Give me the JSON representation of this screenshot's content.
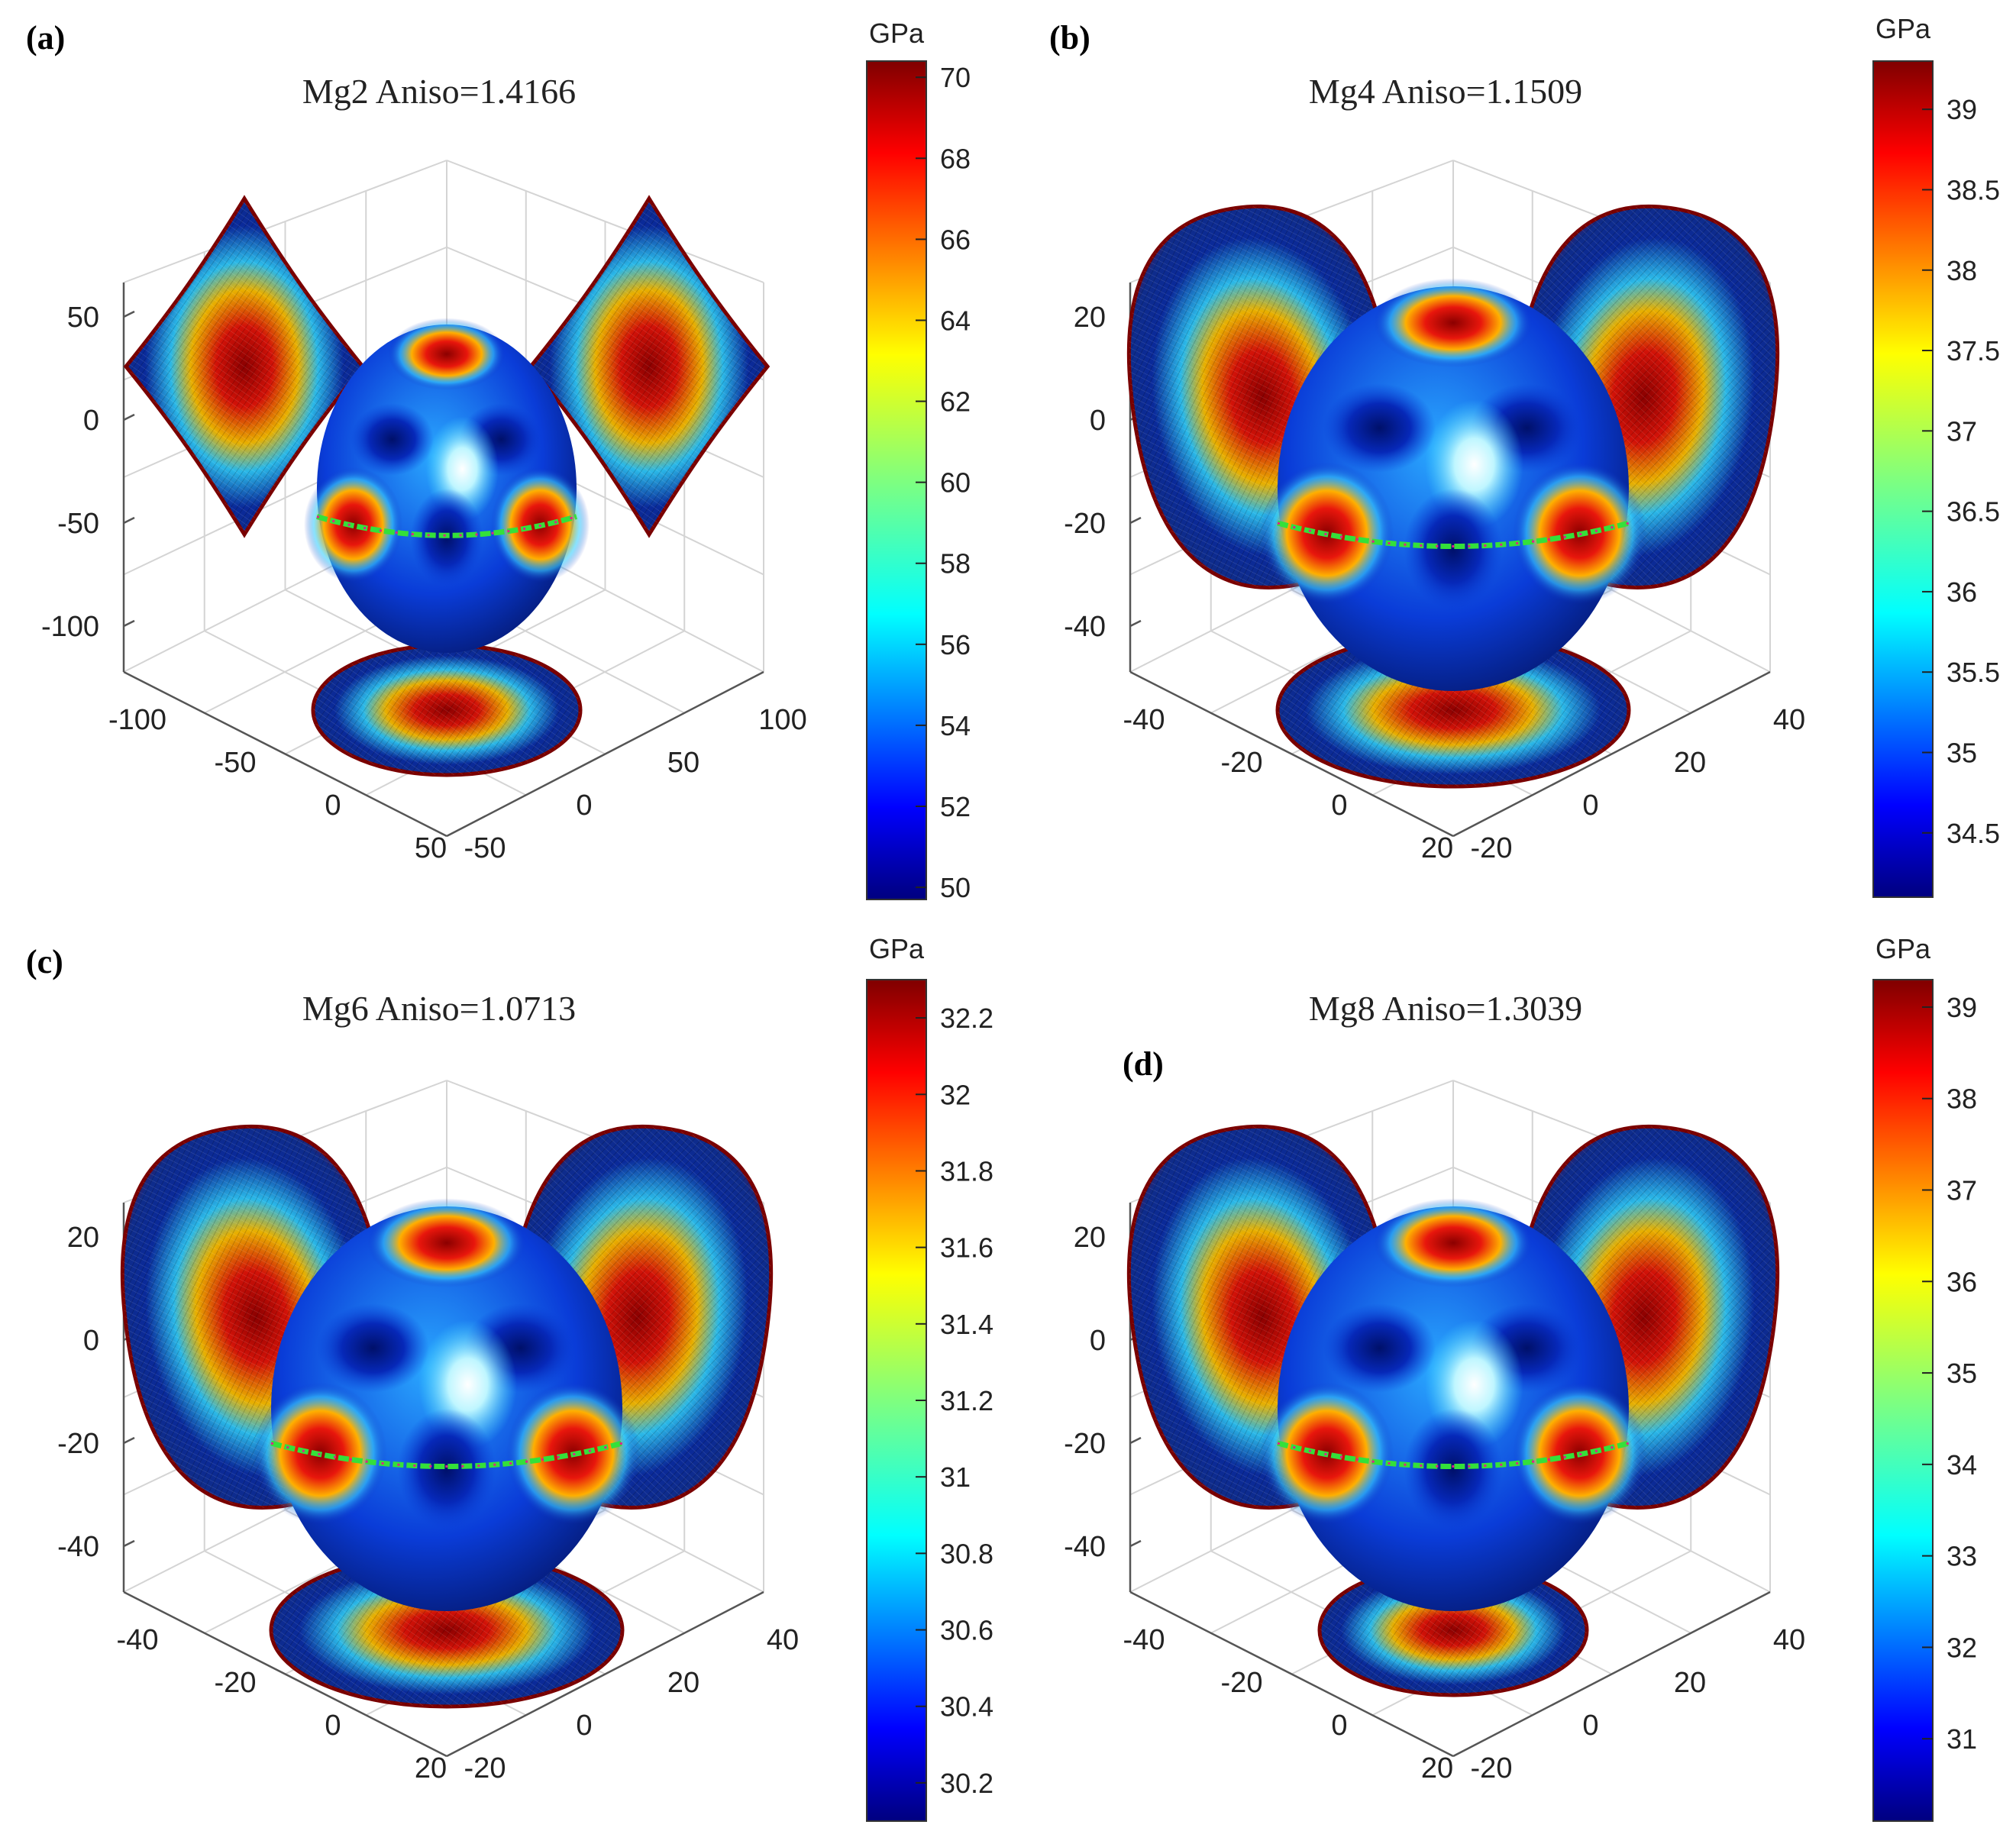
{
  "chart_data": [
    {
      "type": "3d-surface",
      "panel_label": "(a)",
      "title": "Mg2  Aniso=1.4166",
      "z_ticks": [
        "50",
        "0",
        "-50",
        "-100"
      ],
      "x_ticks": [
        "-100",
        "-50",
        "0",
        "50"
      ],
      "y_ticks": [
        "100",
        "50",
        "0",
        "-50"
      ],
      "colorbar": {
        "unit": "GPa",
        "ticks": [
          "70",
          "68",
          "66",
          "64",
          "62",
          "60",
          "58",
          "56",
          "54",
          "52",
          "50"
        ],
        "range": [
          49.7,
          70.4
        ]
      },
      "colormap": "jet",
      "anisotropy": 1.4166
    },
    {
      "type": "3d-surface",
      "panel_label": "(b)",
      "title": "Mg4  Aniso=1.1509",
      "z_ticks": [
        "20",
        "0",
        "-20",
        "-40"
      ],
      "x_ticks": [
        "-40",
        "-20",
        "0",
        "20"
      ],
      "y_ticks": [
        "40",
        "20",
        "0",
        "-20"
      ],
      "colorbar": {
        "unit": "GPa",
        "ticks": [
          "39",
          "38.5",
          "38",
          "37.5",
          "37",
          "36.5",
          "36",
          "35.5",
          "35",
          "34.5"
        ],
        "range": [
          34.1,
          39.3
        ]
      },
      "colormap": "jet",
      "anisotropy": 1.1509
    },
    {
      "type": "3d-surface",
      "panel_label": "(c)",
      "title": "Mg6  Aniso=1.0713",
      "z_ticks": [
        "20",
        "0",
        "-20",
        "-40"
      ],
      "x_ticks": [
        "-40",
        "-20",
        "0",
        "20"
      ],
      "y_ticks": [
        "40",
        "20",
        "0",
        "-20"
      ],
      "colorbar": {
        "unit": "GPa",
        "ticks": [
          "32.2",
          "32",
          "31.8",
          "31.6",
          "31.4",
          "31.2",
          "31",
          "30.8",
          "30.6",
          "30.4",
          "30.2"
        ],
        "range": [
          30.1,
          32.3
        ]
      },
      "colormap": "jet",
      "anisotropy": 1.0713
    },
    {
      "type": "3d-surface",
      "panel_label": "(d)",
      "title": "Mg8  Aniso=1.3039",
      "z_ticks": [
        "20",
        "0",
        "-20",
        "-40"
      ],
      "x_ticks": [
        "-40",
        "-20",
        "0",
        "20"
      ],
      "y_ticks": [
        "40",
        "20",
        "0",
        "-20"
      ],
      "colorbar": {
        "unit": "GPa",
        "ticks": [
          "39",
          "38",
          "37",
          "36",
          "35",
          "34",
          "33",
          "32",
          "31"
        ],
        "range": [
          30.1,
          39.3
        ]
      },
      "colormap": "jet",
      "anisotropy": 1.3039
    }
  ]
}
